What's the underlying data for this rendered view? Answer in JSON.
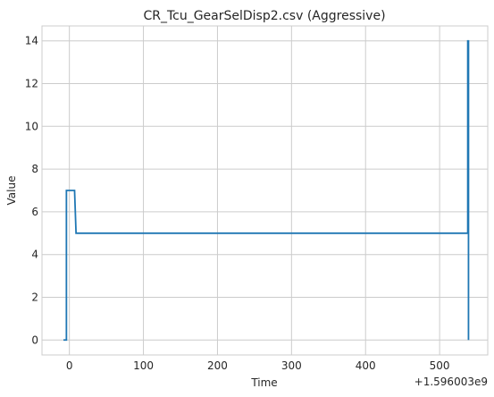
{
  "chart_data": {
    "type": "line",
    "title": "CR_Tcu_GearSelDisp2.csv (Aggressive)",
    "xlabel": "Time",
    "ylabel": "Value",
    "x_offset_label": "+1.596003e9",
    "xlim": [
      -37,
      565
    ],
    "ylim": [
      -0.7,
      14.7
    ],
    "xticks": [
      0,
      100,
      200,
      300,
      400,
      500
    ],
    "yticks": [
      0,
      2,
      4,
      6,
      8,
      10,
      12,
      14
    ],
    "grid": true,
    "series": [
      {
        "color": "#1f77b4",
        "x": [
          -8,
          -4,
          -4,
          7,
          9,
          538,
          538,
          539,
          539
        ],
        "y": [
          0,
          0,
          7,
          7,
          5,
          5,
          14,
          14,
          0
        ]
      }
    ]
  }
}
